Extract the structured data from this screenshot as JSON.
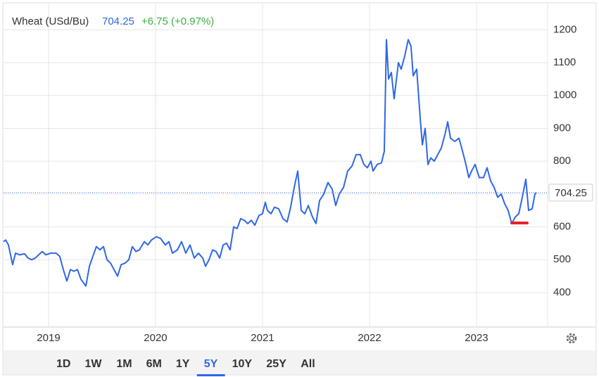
{
  "chart_data": {
    "type": "line",
    "title": "Wheat (USd/Bu)",
    "last_price": 704.25,
    "change_label": "+6.75 (+0.97%)",
    "x": [
      2018.579,
      2018.599,
      2018.625,
      2018.664,
      2018.691,
      2018.73,
      2018.776,
      2018.809,
      2018.842,
      2018.875,
      2018.908,
      2018.941,
      2018.974,
      2019.02,
      2019.072,
      2019.105,
      2019.138,
      2019.171,
      2019.204,
      2019.237,
      2019.27,
      2019.303,
      2019.349,
      2019.382,
      2019.414,
      2019.447,
      2019.48,
      2019.513,
      2019.546,
      2019.579,
      2019.612,
      2019.645,
      2019.678,
      2019.717,
      2019.75,
      2019.783,
      2019.816,
      2019.849,
      2019.895,
      2019.928,
      2019.961,
      2020.007,
      2020.046,
      2020.092,
      2020.125,
      2020.158,
      2020.204,
      2020.243,
      2020.283,
      2020.322,
      2020.362,
      2020.401,
      2020.441,
      2020.467,
      2020.5,
      2020.533,
      2020.566,
      2020.599,
      2020.632,
      2020.664,
      2020.697,
      2020.73,
      2020.763,
      2020.796,
      2020.829,
      2020.862,
      2020.895,
      2020.928,
      2020.967,
      2021.0,
      2021.026,
      2021.046,
      2021.079,
      2021.112,
      2021.151,
      2021.191,
      2021.23,
      2021.263,
      2021.296,
      2021.329,
      2021.362,
      2021.395,
      2021.428,
      2021.467,
      2021.5,
      2021.533,
      2021.572,
      2021.612,
      2021.651,
      2021.684,
      2021.717,
      2021.757,
      2021.796,
      2021.836,
      2021.875,
      2021.914,
      2021.947,
      2021.98,
      2022.013,
      2022.033,
      2022.072,
      2022.112,
      2022.138,
      2022.158,
      2022.178,
      2022.204,
      2022.23,
      2022.27,
      2022.296,
      2022.329,
      2022.362,
      2022.388,
      2022.408,
      2022.441,
      2022.474,
      2022.494,
      2022.52,
      2022.546,
      2022.572,
      2022.605,
      2022.638,
      2022.671,
      2022.704,
      2022.731,
      2022.757,
      2022.796,
      2022.836,
      2022.862,
      2022.901,
      2022.928,
      2022.954,
      2022.987,
      2023.026,
      2023.066,
      2023.099,
      2023.132,
      2023.165,
      2023.198,
      2023.231,
      2023.264,
      2023.296,
      2023.329,
      2023.362,
      2023.395,
      2023.428,
      2023.461,
      2023.487,
      2023.52,
      2023.546,
      2023.559
    ],
    "series": [
      {
        "name": "Wheat",
        "color": "#2f67e6",
        "values": [
          555,
          560,
          545,
          485,
          520,
          515,
          518,
          505,
          500,
          505,
          515,
          525,
          515,
          520,
          520,
          510,
          470,
          435,
          470,
          465,
          470,
          440,
          420,
          480,
          510,
          540,
          530,
          540,
          500,
          490,
          470,
          450,
          485,
          490,
          500,
          540,
          525,
          530,
          555,
          545,
          560,
          570,
          565,
          545,
          555,
          520,
          530,
          555,
          520,
          545,
          505,
          520,
          505,
          480,
          500,
          530,
          525,
          505,
          545,
          550,
          530,
          600,
          595,
          625,
          620,
          610,
          620,
          605,
          635,
          640,
          675,
          650,
          640,
          660,
          655,
          625,
          615,
          660,
          720,
          770,
          650,
          640,
          665,
          630,
          610,
          680,
          700,
          735,
          715,
          665,
          700,
          720,
          770,
          785,
          820,
          820,
          790,
          780,
          800,
          770,
          790,
          795,
          830,
          1170,
          1050,
          1070,
          990,
          1100,
          1080,
          1120,
          1170,
          1150,
          1060,
          1080,
          930,
          850,
          900,
          790,
          810,
          800,
          820,
          840,
          880,
          920,
          870,
          860,
          870,
          840,
          790,
          750,
          770,
          790,
          750,
          750,
          780,
          740,
          720,
          690,
          700,
          670,
          650,
          610,
          630,
          640,
          690,
          745,
          650,
          655,
          700,
          704.25
        ]
      }
    ],
    "xlim": [
      2018.579,
      2023.645
    ],
    "xticks": [
      2019,
      2020,
      2021,
      2022,
      2023
    ],
    "ylim": [
      295,
      1280
    ],
    "yticks": [
      400,
      500,
      600,
      700,
      800,
      900,
      1000,
      1100,
      1200
    ],
    "grid": true,
    "range_buttons": [
      "1D",
      "1W",
      "1M",
      "6M",
      "1Y",
      "5Y",
      "10Y",
      "25Y",
      "All"
    ],
    "active_range": "5Y"
  }
}
